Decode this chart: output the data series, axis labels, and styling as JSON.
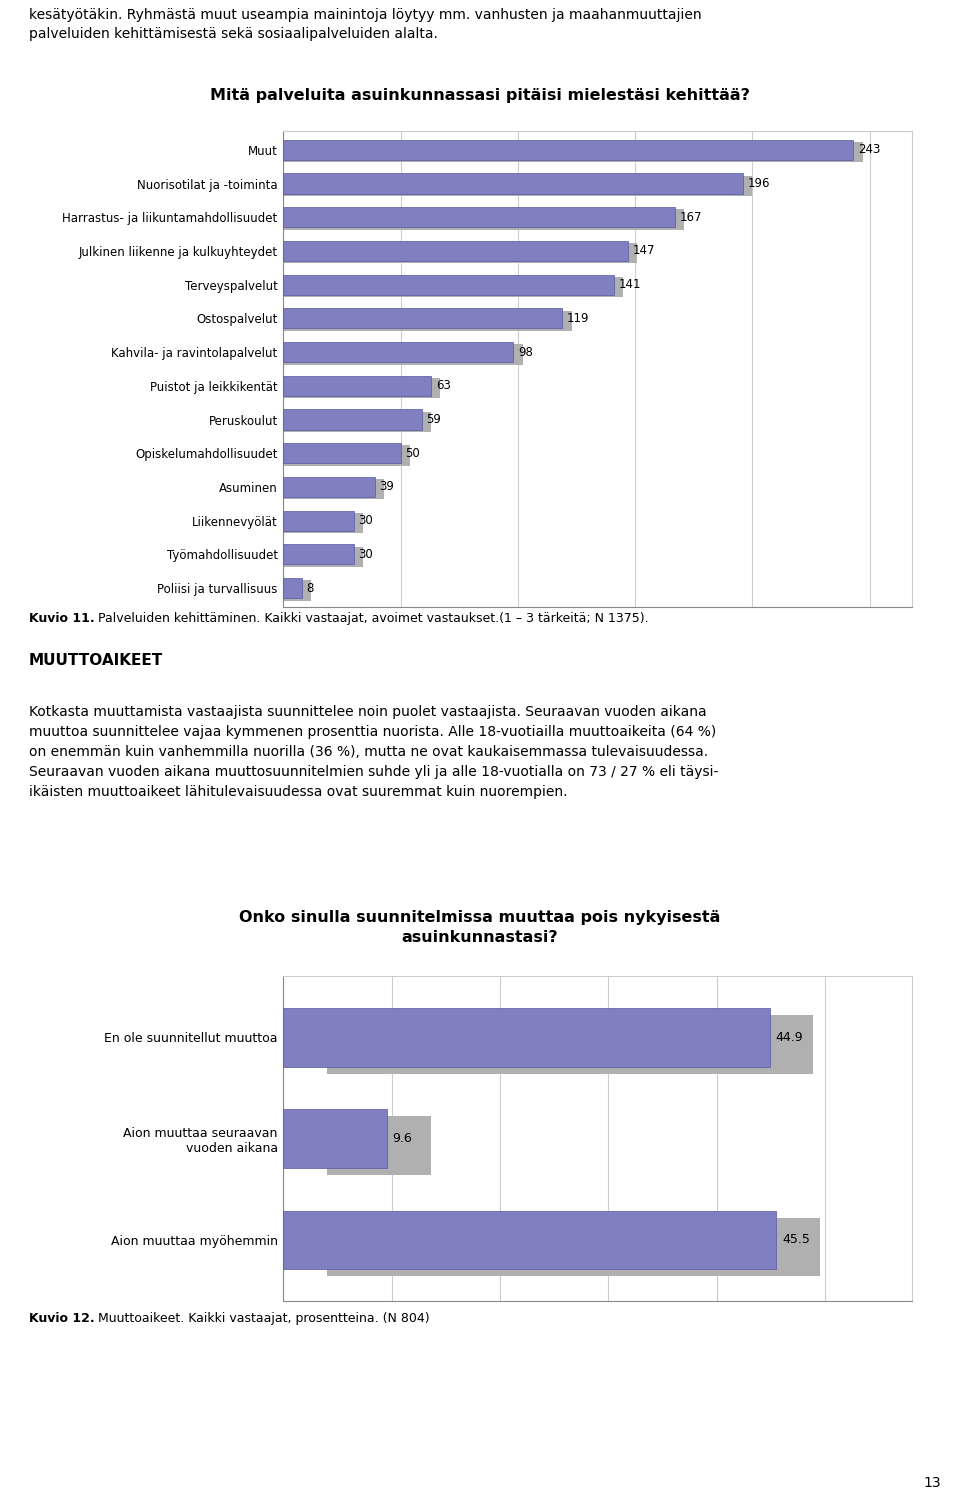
{
  "page_text_top_line1": "kesätyötäkin. Ryhmästä muut useampia mainintoja löytyy mm. vanhusten ja maahanmuuttajien",
  "page_text_top_line2": "palveluiden kehittämisestä sekä sosiaalipalveluiden alalta.",
  "chart1_title": "Mitä palveluita asuinkunnassasi pitäisi mielestäsi kehittää?",
  "chart1_categories": [
    "Muut",
    "Nuorisotilat ja -toiminta",
    "Harrastus- ja liikuntamahdollisuudet",
    "Julkinen liikenne ja kulkuyhteydet",
    "Terveyspalvelut",
    "Ostospalvelut",
    "Kahvila- ja ravintolapalvelut",
    "Puistot ja leikkikentät",
    "Peruskoulut",
    "Opiskelumahdollisuudet",
    "Asuminen",
    "Liikennevyölät",
    "Työmahdollisuudet",
    "Poliisi ja turvallisuus"
  ],
  "chart1_values": [
    243,
    196,
    167,
    147,
    141,
    119,
    98,
    63,
    59,
    50,
    39,
    30,
    30,
    8
  ],
  "chart1_bar_color": "#8080C0",
  "chart1_bar_edge_color": "#5555AA",
  "chart1_shadow_color": "#B0B0B0",
  "chart1_caption_bold": "Kuvio 11.",
  "chart1_caption_rest": " Palveluiden kehittäminen. Kaikki vastaajat, avoimet vastaukset.(1 – 3 tärkeitä; N 1375).",
  "section_title": "MUUTTOAIKEET",
  "body_text_lines": [
    "Kotkasta muuttamista vastaajista suunnittelee noin puolet vastaajista. Seuraavan vuoden aikana",
    "muuttoa suunnittelee vajaa kymmenen prosenttia nuorista. Alle 18-vuotiailla muuttoaikeita (64 %)",
    "on enemmän kuin vanhemmilla nuorilla (36 %), mutta ne ovat kaukaisemmassa tulevaisuudessa.",
    "Seuraavan vuoden aikana muuttosuunnitelmien suhde yli ja alle 18-vuotialla on 73 / 27 % eli täysi-",
    "ikäisten muuttoaikeet lähitulevaisuudessa ovat suuremmat kuin nuorempien."
  ],
  "chart2_title_line1": "Onko sinulla suunnitelmissa muuttaa pois nykyisestä",
  "chart2_title_line2": "asuinkunnastasi?",
  "chart2_categories": [
    "En ole suunnitellut muuttoa",
    "Aion muuttaa seuraavan\nvuoden aikana",
    "Aion muuttaa myöhemmin"
  ],
  "chart2_values": [
    44.9,
    9.6,
    45.5
  ],
  "chart2_bar_color": "#8080C0",
  "chart2_bar_edge_color": "#5555AA",
  "chart2_shadow_color": "#B0B0B0",
  "chart2_caption_bold": "Kuvio 12.",
  "chart2_caption_rest": " Muuttoaikeet. Kaikki vastaajat, prosentteina. (N 804)",
  "page_number": "13",
  "background_color": "#FFFFFF",
  "text_color": "#000000",
  "grid_color": "#CCCCCC",
  "spine_color": "#888888"
}
